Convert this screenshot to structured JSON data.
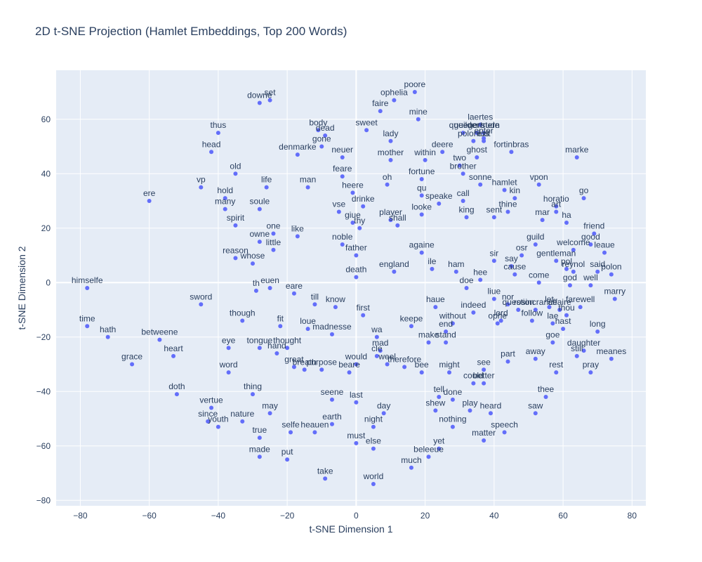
{
  "chart_data": {
    "type": "scatter",
    "title": "2D t-SNE Projection (Hamlet Embeddings, Top 200 Words)",
    "xlabel": "t-SNE Dimension 1",
    "ylabel": "t-SNE Dimension 2",
    "xlim": [
      -87,
      84
    ],
    "ylim": [
      -82,
      78
    ],
    "xticks": [
      -80,
      -60,
      -40,
      -20,
      0,
      20,
      40,
      60,
      80
    ],
    "yticks": [
      -80,
      -60,
      -40,
      -20,
      0,
      20,
      40,
      60
    ],
    "grid": true,
    "colors": {
      "marker": "#636efa",
      "plot_bg": "#e5ecf6",
      "grid": "#ffffff",
      "text": "#2a3f5f"
    },
    "points": [
      {
        "label": "poore",
        "x": 17,
        "y": 70
      },
      {
        "label": "set",
        "x": -25,
        "y": 67
      },
      {
        "label": "downe",
        "x": -28,
        "y": 66
      },
      {
        "label": "ophelia",
        "x": 11,
        "y": 67
      },
      {
        "label": "faire",
        "x": 7,
        "y": 63
      },
      {
        "label": "mine",
        "x": 18,
        "y": 60
      },
      {
        "label": "thus",
        "x": -40,
        "y": 55
      },
      {
        "label": "body",
        "x": -11,
        "y": 56
      },
      {
        "label": "dead",
        "x": -9,
        "y": 54
      },
      {
        "label": "sweet",
        "x": 3,
        "y": 56
      },
      {
        "label": "laertes",
        "x": 36,
        "y": 58
      },
      {
        "label": "queene",
        "x": 31,
        "y": 55
      },
      {
        "label": "guildenstern",
        "x": 35,
        "y": 55
      },
      {
        "label": "gertrude",
        "x": 37,
        "y": 55
      },
      {
        "label": "polonius",
        "x": 34,
        "y": 52
      },
      {
        "label": "enter",
        "x": 37,
        "y": 53
      },
      {
        "label": "exit",
        "x": 37,
        "y": 52
      },
      {
        "label": "gone",
        "x": -10,
        "y": 50
      },
      {
        "label": "lady",
        "x": 10,
        "y": 52
      },
      {
        "label": "head",
        "x": -42,
        "y": 48
      },
      {
        "label": "denmarke",
        "x": -17,
        "y": 47
      },
      {
        "label": "neuer",
        "x": -4,
        "y": 46
      },
      {
        "label": "mother",
        "x": 10,
        "y": 45
      },
      {
        "label": "within",
        "x": 20,
        "y": 45
      },
      {
        "label": "deere",
        "x": 25,
        "y": 48
      },
      {
        "label": "ghost",
        "x": 35,
        "y": 46
      },
      {
        "label": "fortinbras",
        "x": 45,
        "y": 48
      },
      {
        "label": "marke",
        "x": 64,
        "y": 46
      },
      {
        "label": "two",
        "x": 30,
        "y": 43
      },
      {
        "label": "brother",
        "x": 31,
        "y": 40
      },
      {
        "label": "old",
        "x": -35,
        "y": 40
      },
      {
        "label": "feare",
        "x": -4,
        "y": 39
      },
      {
        "label": "fortune",
        "x": 19,
        "y": 38
      },
      {
        "label": "sonne",
        "x": 36,
        "y": 36
      },
      {
        "label": "vpon",
        "x": 53,
        "y": 36
      },
      {
        "label": "vp",
        "x": -45,
        "y": 35
      },
      {
        "label": "life",
        "x": -26,
        "y": 35
      },
      {
        "label": "man",
        "x": -14,
        "y": 35
      },
      {
        "label": "oh",
        "x": 9,
        "y": 36
      },
      {
        "label": "hamlet",
        "x": 43,
        "y": 34
      },
      {
        "label": "go",
        "x": 66,
        "y": 31
      },
      {
        "label": "heere",
        "x": -1,
        "y": 33
      },
      {
        "label": "qu",
        "x": 19,
        "y": 32
      },
      {
        "label": "kin",
        "x": 46,
        "y": 31
      },
      {
        "label": "ere",
        "x": -60,
        "y": 30
      },
      {
        "label": "hold",
        "x": -38,
        "y": 31
      },
      {
        "label": "speake",
        "x": 24,
        "y": 29
      },
      {
        "label": "call",
        "x": 31,
        "y": 30
      },
      {
        "label": "drinke",
        "x": 2,
        "y": 28
      },
      {
        "label": "horatio",
        "x": 58,
        "y": 28
      },
      {
        "label": "many",
        "x": -38,
        "y": 27
      },
      {
        "label": "soule",
        "x": -28,
        "y": 27
      },
      {
        "label": "looke",
        "x": 19,
        "y": 25
      },
      {
        "label": "art",
        "x": 58,
        "y": 26
      },
      {
        "label": "thine",
        "x": 44,
        "y": 26
      },
      {
        "label": "vse",
        "x": -5,
        "y": 26
      },
      {
        "label": "king",
        "x": 32,
        "y": 24
      },
      {
        "label": "sent",
        "x": 40,
        "y": 24
      },
      {
        "label": "mar",
        "x": 54,
        "y": 23
      },
      {
        "label": "ha",
        "x": 61,
        "y": 22
      },
      {
        "label": "giue",
        "x": -1,
        "y": 22
      },
      {
        "label": "player",
        "x": 10,
        "y": 23
      },
      {
        "label": "spirit",
        "x": -35,
        "y": 21
      },
      {
        "label": "shall",
        "x": 12,
        "y": 21
      },
      {
        "label": "thy",
        "x": 1,
        "y": 20
      },
      {
        "label": "friend",
        "x": 69,
        "y": 18
      },
      {
        "label": "one",
        "x": -24,
        "y": 18
      },
      {
        "label": "like",
        "x": -17,
        "y": 17
      },
      {
        "label": "owne",
        "x": -28,
        "y": 15
      },
      {
        "label": "noble",
        "x": -4,
        "y": 14
      },
      {
        "label": "good",
        "x": 68,
        "y": 14
      },
      {
        "label": "guild",
        "x": 52,
        "y": 14
      },
      {
        "label": "little",
        "x": -24,
        "y": 12
      },
      {
        "label": "father",
        "x": 0,
        "y": 10
      },
      {
        "label": "againe",
        "x": 19,
        "y": 11
      },
      {
        "label": "welcome",
        "x": 63,
        "y": 12
      },
      {
        "label": "leaue",
        "x": 72,
        "y": 11
      },
      {
        "label": "reason",
        "x": -35,
        "y": 9
      },
      {
        "label": "osr",
        "x": 48,
        "y": 10
      },
      {
        "label": "sir",
        "x": 40,
        "y": 8
      },
      {
        "label": "gentleman",
        "x": 58,
        "y": 8
      },
      {
        "label": "whose",
        "x": -30,
        "y": 7
      },
      {
        "label": "say",
        "x": 45,
        "y": 6
      },
      {
        "label": "pol",
        "x": 61,
        "y": 5
      },
      {
        "label": "reynol",
        "x": 63,
        "y": 4
      },
      {
        "label": "said",
        "x": 70,
        "y": 4
      },
      {
        "label": "england",
        "x": 11,
        "y": 4
      },
      {
        "label": "ile",
        "x": 22,
        "y": 5
      },
      {
        "label": "ham",
        "x": 29,
        "y": 4
      },
      {
        "label": "cause",
        "x": 46,
        "y": 3
      },
      {
        "label": "polon",
        "x": 74,
        "y": 3
      },
      {
        "label": "death",
        "x": 0,
        "y": 2
      },
      {
        "label": "hee",
        "x": 36,
        "y": 1
      },
      {
        "label": "come",
        "x": 53,
        "y": 0
      },
      {
        "label": "doe",
        "x": 32,
        "y": -2
      },
      {
        "label": "god",
        "x": 62,
        "y": -1
      },
      {
        "label": "well",
        "x": 68,
        "y": -1
      },
      {
        "label": "himselfe",
        "x": -78,
        "y": -2
      },
      {
        "label": "euen",
        "x": -25,
        "y": -2
      },
      {
        "label": "th",
        "x": -29,
        "y": -3
      },
      {
        "label": "eare",
        "x": -18,
        "y": -4
      },
      {
        "label": "liue",
        "x": 40,
        "y": -6
      },
      {
        "label": "marry",
        "x": 75,
        "y": -6
      },
      {
        "label": "sword",
        "x": -45,
        "y": -8
      },
      {
        "label": "till",
        "x": -12,
        "y": -8
      },
      {
        "label": "nor",
        "x": 44,
        "y": -8
      },
      {
        "label": "know",
        "x": -6,
        "y": -9
      },
      {
        "label": "haue",
        "x": 23,
        "y": -9
      },
      {
        "label": "let",
        "x": 56,
        "y": -9
      },
      {
        "label": "rosincrance",
        "x": 52,
        "y": -10
      },
      {
        "label": "affaire",
        "x": 59,
        "y": -10
      },
      {
        "label": "farewell",
        "x": 65,
        "y": -9
      },
      {
        "label": "question",
        "x": 47,
        "y": -10
      },
      {
        "label": "indeed",
        "x": 34,
        "y": -11
      },
      {
        "label": "first",
        "x": 2,
        "y": -12
      },
      {
        "label": "thou",
        "x": 61,
        "y": -12
      },
      {
        "label": "follow",
        "x": 51,
        "y": -14
      },
      {
        "label": "though",
        "x": -33,
        "y": -14
      },
      {
        "label": "lord",
        "x": 42,
        "y": -14
      },
      {
        "label": "lae",
        "x": 57,
        "y": -15
      },
      {
        "label": "ophe",
        "x": 41,
        "y": -15
      },
      {
        "label": "hast",
        "x": 60,
        "y": -17
      },
      {
        "label": "long",
        "x": 70,
        "y": -18
      },
      {
        "label": "without",
        "x": 28,
        "y": -15
      },
      {
        "label": "fit",
        "x": -22,
        "y": -16
      },
      {
        "label": "keepe",
        "x": 16,
        "y": -16
      },
      {
        "label": "end",
        "x": 26,
        "y": -18
      },
      {
        "label": "loue",
        "x": -14,
        "y": -17
      },
      {
        "label": "time",
        "x": -78,
        "y": -16
      },
      {
        "label": "madnesse",
        "x": -7,
        "y": -19
      },
      {
        "label": "hath",
        "x": -72,
        "y": -20
      },
      {
        "label": "wa",
        "x": 6,
        "y": -20
      },
      {
        "label": "betweene",
        "x": -57,
        "y": -21
      },
      {
        "label": "make",
        "x": 21,
        "y": -22
      },
      {
        "label": "stand",
        "x": 26,
        "y": -22
      },
      {
        "label": "goe",
        "x": 57,
        "y": -22
      },
      {
        "label": "eye",
        "x": -37,
        "y": -24
      },
      {
        "label": "tongue",
        "x": -28,
        "y": -24
      },
      {
        "label": "thought",
        "x": -20,
        "y": -24
      },
      {
        "label": "hand",
        "x": -23,
        "y": -26
      },
      {
        "label": "mad",
        "x": 7,
        "y": -25
      },
      {
        "label": "daughter",
        "x": 66,
        "y": -25
      },
      {
        "label": "cle",
        "x": 6,
        "y": -27
      },
      {
        "label": "heart",
        "x": -53,
        "y": -27
      },
      {
        "label": "still",
        "x": 64,
        "y": -27
      },
      {
        "label": "meanes",
        "x": 74,
        "y": -28
      },
      {
        "label": "away",
        "x": 52,
        "y": -28
      },
      {
        "label": "part",
        "x": 44,
        "y": -29
      },
      {
        "label": "grace",
        "x": -65,
        "y": -30
      },
      {
        "label": "would",
        "x": 0,
        "y": -30
      },
      {
        "label": "weel",
        "x": 9,
        "y": -30
      },
      {
        "label": "great",
        "x": -18,
        "y": -31
      },
      {
        "label": "breath",
        "x": -15,
        "y": -32
      },
      {
        "label": "purpose",
        "x": -10,
        "y": -32
      },
      {
        "label": "therefore",
        "x": 14,
        "y": -31
      },
      {
        "label": "beare",
        "x": -2,
        "y": -33
      },
      {
        "label": "bee",
        "x": 19,
        "y": -33
      },
      {
        "label": "might",
        "x": 27,
        "y": -33
      },
      {
        "label": "see",
        "x": 37,
        "y": -32
      },
      {
        "label": "word",
        "x": -37,
        "y": -33
      },
      {
        "label": "rest",
        "x": 58,
        "y": -33
      },
      {
        "label": "pray",
        "x": 68,
        "y": -33
      },
      {
        "label": "could",
        "x": 34,
        "y": -37
      },
      {
        "label": "better",
        "x": 37,
        "y": -37
      },
      {
        "label": "thing",
        "x": -30,
        "y": -41
      },
      {
        "label": "tell",
        "x": 24,
        "y": -42
      },
      {
        "label": "doth",
        "x": -52,
        "y": -41
      },
      {
        "label": "thee",
        "x": 55,
        "y": -42
      },
      {
        "label": "seene",
        "x": -7,
        "y": -43
      },
      {
        "label": "done",
        "x": 28,
        "y": -43
      },
      {
        "label": "last",
        "x": 0,
        "y": -44
      },
      {
        "label": "vertue",
        "x": -42,
        "y": -46
      },
      {
        "label": "shew",
        "x": 23,
        "y": -47
      },
      {
        "label": "play",
        "x": 33,
        "y": -47
      },
      {
        "label": "may",
        "x": -25,
        "y": -48
      },
      {
        "label": "day",
        "x": 8,
        "y": -48
      },
      {
        "label": "heard",
        "x": 39,
        "y": -48
      },
      {
        "label": "saw",
        "x": 52,
        "y": -48
      },
      {
        "label": "since",
        "x": -43,
        "y": -51
      },
      {
        "label": "youth",
        "x": -40,
        "y": -53
      },
      {
        "label": "nature",
        "x": -33,
        "y": -51
      },
      {
        "label": "earth",
        "x": -7,
        "y": -52
      },
      {
        "label": "nothing",
        "x": 28,
        "y": -53
      },
      {
        "label": "night",
        "x": 5,
        "y": -53
      },
      {
        "label": "selfe",
        "x": -19,
        "y": -55
      },
      {
        "label": "heauen",
        "x": -12,
        "y": -55
      },
      {
        "label": "speech",
        "x": 43,
        "y": -55
      },
      {
        "label": "true",
        "x": -28,
        "y": -57
      },
      {
        "label": "matter",
        "x": 37,
        "y": -58
      },
      {
        "label": "must",
        "x": 0,
        "y": -59
      },
      {
        "label": "else",
        "x": 5,
        "y": -61
      },
      {
        "label": "yet",
        "x": 24,
        "y": -61
      },
      {
        "label": "beleeue",
        "x": 21,
        "y": -64
      },
      {
        "label": "made",
        "x": -28,
        "y": -64
      },
      {
        "label": "put",
        "x": -20,
        "y": -65
      },
      {
        "label": "much",
        "x": 16,
        "y": -68
      },
      {
        "label": "take",
        "x": -9,
        "y": -72
      },
      {
        "label": "world",
        "x": 5,
        "y": -74
      }
    ]
  }
}
